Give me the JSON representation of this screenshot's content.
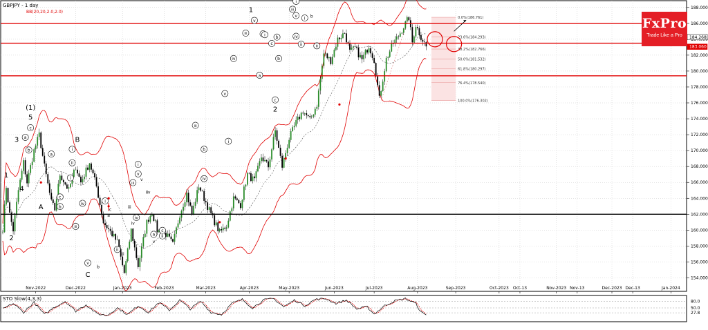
{
  "chart_data": {
    "type": "candlestick",
    "title": "GBPJPY - 1 day",
    "indicator_label": "BB(20,20,2.0,2.0)",
    "sto_label": "STO Slow(4,3,3)",
    "brand": {
      "name": "FxPro",
      "tagline": "Trade Like a Pro",
      "color": "#e41e26"
    },
    "ylim": [
      153.0,
      188.5
    ],
    "y_ticks": [
      "188.000",
      "186.000",
      "184.000",
      "182.000",
      "180.000",
      "178.000",
      "176.000",
      "174.000",
      "172.000",
      "170.000",
      "168.000",
      "166.000",
      "164.000",
      "162.000",
      "160.000",
      "158.000",
      "156.000",
      "154.000"
    ],
    "y_tick_values": [
      188,
      186,
      184,
      182,
      180,
      178,
      176,
      174,
      172,
      170,
      168,
      166,
      164,
      162,
      160,
      158,
      156,
      154
    ],
    "x_ticks": [
      "Nov-2022",
      "Dec-2022",
      "Jan-2023",
      "Feb-2023",
      "Mar-2023",
      "Apr-2023",
      "May-2023",
      "Jun-2023",
      "Jul-2023",
      "Aug-2023",
      "Sep-2023",
      "Oct-2023",
      "Oct-13",
      "Nov-2023",
      "Nov-13",
      "Dec-2023",
      "Dec-13",
      "Jan-2024"
    ],
    "x_tick_index": [
      19,
      42,
      69,
      93,
      117,
      142,
      165,
      191,
      214,
      239,
      261,
      286,
      298,
      319,
      331,
      351,
      363,
      385
    ],
    "current_price_labels": [
      {
        "text": "184.268",
        "value": 184.268
      },
      {
        "text": "183.060",
        "value": 183.06
      }
    ],
    "horizontal_levels": [
      {
        "value": 186.0,
        "color": "#e00000"
      },
      {
        "value": 183.5,
        "color": "#e00000"
      },
      {
        "value": 179.4,
        "color": "#e00000"
      },
      {
        "value": 162.0,
        "color": "#000000"
      }
    ],
    "fibonacci": [
      {
        "label": "0.0%(186.761)",
        "value": 186.761
      },
      {
        "label": "23.6%(184.293)",
        "value": 184.293
      },
      {
        "label": "38.2%(182.766)",
        "value": 182.766
      },
      {
        "label": "50.0%(181.532)",
        "value": 181.532
      },
      {
        "label": "61.8%(180.297)",
        "value": 180.297
      },
      {
        "label": "76.4%(178.540)",
        "value": 178.54
      },
      {
        "label": "100.0%(176.302)",
        "value": 176.302
      }
    ],
    "waypoints": [
      [
        0,
        160.2
      ],
      [
        2,
        165.5
      ],
      [
        4,
        162.0
      ],
      [
        6,
        160.0
      ],
      [
        9,
        165.0
      ],
      [
        12,
        168.5
      ],
      [
        14,
        166.0
      ],
      [
        18,
        170.0
      ],
      [
        21,
        172.0
      ],
      [
        24,
        168.0
      ],
      [
        28,
        163.5
      ],
      [
        30,
        162.6
      ],
      [
        33,
        167.0
      ],
      [
        38,
        165.0
      ],
      [
        42,
        168.0
      ],
      [
        45,
        166.0
      ],
      [
        50,
        168.5
      ],
      [
        54,
        165.5
      ],
      [
        58,
        161.0
      ],
      [
        62,
        159.8
      ],
      [
        66,
        158.5
      ],
      [
        70,
        154.6
      ],
      [
        74,
        160.0
      ],
      [
        78,
        155.5
      ],
      [
        83,
        161.0
      ],
      [
        86,
        162.3
      ],
      [
        89,
        160.0
      ],
      [
        94,
        159.5
      ],
      [
        98,
        158.2
      ],
      [
        102,
        162.0
      ],
      [
        106,
        164.6
      ],
      [
        109,
        162.0
      ],
      [
        113,
        165.6
      ],
      [
        117,
        163.5
      ],
      [
        121,
        161.5
      ],
      [
        125,
        159.7
      ],
      [
        129,
        160.6
      ],
      [
        133,
        164.0
      ],
      [
        137,
        163.2
      ],
      [
        141,
        167.0
      ],
      [
        145,
        166.2
      ],
      [
        149,
        169.2
      ],
      [
        153,
        168.0
      ],
      [
        157,
        172.5
      ],
      [
        161,
        168.0
      ],
      [
        165,
        171.5
      ],
      [
        169,
        173.5
      ],
      [
        173,
        175.0
      ],
      [
        177,
        173.8
      ],
      [
        181,
        175.8
      ],
      [
        185,
        182.2
      ],
      [
        189,
        181.3
      ],
      [
        193,
        184.0
      ],
      [
        197,
        184.8
      ],
      [
        200,
        182.4
      ],
      [
        203,
        182.9
      ],
      [
        207,
        181.4
      ],
      [
        211,
        183.2
      ],
      [
        214,
        181.4
      ],
      [
        217,
        176.5
      ],
      [
        221,
        181.5
      ],
      [
        225,
        183.5
      ],
      [
        228,
        184.4
      ],
      [
        231,
        185.6
      ],
      [
        234,
        186.7
      ],
      [
        236,
        183.6
      ],
      [
        238,
        185.8
      ],
      [
        241,
        184.3
      ],
      [
        244,
        183.1
      ]
    ],
    "stochastic": {
      "ylim": [
        0,
        100
      ],
      "levels": [
        80.0,
        50.0,
        27.8
      ],
      "level_labels": [
        "80.0",
        "50.0",
        "27.8"
      ],
      "waypoints": [
        [
          0,
          45
        ],
        [
          6,
          70
        ],
        [
          12,
          30
        ],
        [
          18,
          75
        ],
        [
          24,
          20
        ],
        [
          30,
          55
        ],
        [
          36,
          80
        ],
        [
          42,
          35
        ],
        [
          48,
          65
        ],
        [
          54,
          25
        ],
        [
          60,
          15
        ],
        [
          66,
          50
        ],
        [
          72,
          20
        ],
        [
          78,
          60
        ],
        [
          84,
          30
        ],
        [
          90,
          75
        ],
        [
          96,
          40
        ],
        [
          102,
          85
        ],
        [
          108,
          45
        ],
        [
          114,
          80
        ],
        [
          120,
          30
        ],
        [
          126,
          20
        ],
        [
          132,
          70
        ],
        [
          138,
          88
        ],
        [
          144,
          50
        ],
        [
          150,
          85
        ],
        [
          156,
          92
        ],
        [
          162,
          55
        ],
        [
          168,
          85
        ],
        [
          174,
          60
        ],
        [
          180,
          88
        ],
        [
          186,
          92
        ],
        [
          192,
          70
        ],
        [
          198,
          85
        ],
        [
          204,
          45
        ],
        [
          210,
          55
        ],
        [
          214,
          22
        ],
        [
          220,
          60
        ],
        [
          226,
          82
        ],
        [
          232,
          92
        ],
        [
          238,
          70
        ],
        [
          241,
          30
        ],
        [
          244,
          18
        ]
      ]
    },
    "wave_labels": [
      {
        "t": "(1)",
        "i": 16,
        "v": 175.2,
        "c": 0
      },
      {
        "t": "5",
        "i": 16,
        "v": 174.0,
        "c": 0
      },
      {
        "t": "3",
        "i": 8,
        "v": 171.2,
        "c": 0
      },
      {
        "t": "4",
        "i": 11,
        "v": 165.0,
        "c": 0
      },
      {
        "t": "1",
        "i": 2,
        "v": 166.7,
        "c": 0
      },
      {
        "t": "2",
        "i": 5,
        "v": 158.8,
        "c": 0
      },
      {
        "t": "A",
        "i": 22,
        "v": 162.7,
        "c": 0
      },
      {
        "t": "B",
        "i": 43,
        "v": 171.2,
        "c": 0
      },
      {
        "t": "C",
        "i": 49,
        "v": 154.2,
        "c": 0
      },
      {
        "t": "1",
        "i": 143,
        "v": 187.5,
        "c": 0
      },
      {
        "t": "2",
        "i": 157,
        "v": 175.0,
        "c": 0
      },
      {
        "t": "a",
        "i": 13,
        "v": 171.5,
        "c": 1
      },
      {
        "t": "b",
        "i": 15,
        "v": 169.9,
        "c": 1
      },
      {
        "t": "c",
        "i": 16,
        "v": 172.7,
        "c": 1
      },
      {
        "t": "a",
        "i": 28,
        "v": 169.4,
        "c": 1
      },
      {
        "t": "b",
        "i": 33,
        "v": 162.8,
        "c": 1
      },
      {
        "t": "c",
        "i": 33,
        "v": 164.0,
        "c": 1
      },
      {
        "t": "i",
        "i": 40,
        "v": 170.0,
        "c": 1
      },
      {
        "t": "ii",
        "i": 40,
        "v": 168.3,
        "c": 1
      },
      {
        "t": "i",
        "i": 39,
        "v": 166.4,
        "c": 1
      },
      {
        "t": "iv",
        "i": 46,
        "v": 163.2,
        "c": 1
      },
      {
        "t": "iii",
        "i": 42,
        "v": 160.3,
        "c": 1
      },
      {
        "t": "v",
        "i": 49,
        "v": 155.7,
        "c": 1
      },
      {
        "t": "i",
        "i": 59,
        "v": 163.5,
        "c": 1
      },
      {
        "t": "ii",
        "i": 66,
        "v": 157.4,
        "c": 1
      },
      {
        "t": "iii",
        "i": 75,
        "v": 165.8,
        "c": 1
      },
      {
        "t": "iv",
        "i": 77,
        "v": 161.4,
        "c": 1
      },
      {
        "t": "i",
        "i": 78,
        "v": 168.1,
        "c": 1
      },
      {
        "t": "v",
        "i": 78,
        "v": 166.9,
        "c": 1
      },
      {
        "t": "ii",
        "i": 92,
        "v": 159.1,
        "c": 1
      },
      {
        "t": "a",
        "i": 87,
        "v": 159.3,
        "c": 1
      },
      {
        "t": "c",
        "i": 92,
        "v": 159.8,
        "c": 1
      },
      {
        "t": "iii",
        "i": 111,
        "v": 173.0,
        "c": 1
      },
      {
        "t": "b",
        "i": 116,
        "v": 170.0,
        "c": 1
      },
      {
        "t": "iv",
        "i": 116,
        "v": 166.3,
        "c": 1
      },
      {
        "t": "v",
        "i": 128,
        "v": 177.0,
        "c": 1
      },
      {
        "t": "i",
        "i": 130,
        "v": 171.0,
        "c": 1
      },
      {
        "t": "iv",
        "i": 133,
        "v": 181.4,
        "c": 1
      },
      {
        "t": "iii",
        "i": 140,
        "v": 184.6,
        "c": 1
      },
      {
        "t": "v",
        "i": 145,
        "v": 186.2,
        "c": 1
      },
      {
        "t": "a",
        "i": 150,
        "v": 184.5,
        "c": 1
      },
      {
        "t": "b",
        "i": 158,
        "v": 184.1,
        "c": 1
      },
      {
        "t": "c",
        "i": 155,
        "v": 183.3,
        "c": 1
      },
      {
        "t": "b",
        "i": 159,
        "v": 181.4,
        "c": 1
      },
      {
        "t": "a",
        "i": 148,
        "v": 179.3,
        "c": 1
      },
      {
        "t": "c",
        "i": 157,
        "v": 176.2,
        "c": 1
      },
      {
        "t": "i",
        "i": 151,
        "v": 184.4,
        "c": 1
      },
      {
        "t": "i",
        "i": 169,
        "v": 188.6,
        "c": 1
      },
      {
        "t": "iii",
        "i": 167,
        "v": 187.6,
        "c": 1
      },
      {
        "t": "v",
        "i": 169,
        "v": 186.8,
        "c": 1
      },
      {
        "t": "iv",
        "i": 169,
        "v": 184.2,
        "c": 1
      },
      {
        "t": "i",
        "i": 174,
        "v": 186.5,
        "c": 1
      },
      {
        "t": "ii",
        "i": 172,
        "v": 183.2,
        "c": 1
      },
      {
        "t": "ii",
        "i": 181,
        "v": 183.0,
        "c": 1
      }
    ],
    "plain_labels": [
      {
        "t": "a",
        "i": 61,
        "v": 161.7
      },
      {
        "t": "b",
        "i": 55,
        "v": 155.2
      },
      {
        "t": "c",
        "i": 62,
        "v": 162.4
      },
      {
        "t": "i",
        "i": 89,
        "v": 161.1
      },
      {
        "t": "ii",
        "i": 83,
        "v": 164.6
      },
      {
        "t": "iv",
        "i": 84,
        "v": 164.6
      },
      {
        "t": "v",
        "i": 87,
        "v": 158.4
      },
      {
        "t": "iii",
        "i": 69,
        "v": 156.8
      },
      {
        "t": "iii",
        "i": 73,
        "v": 162.7
      },
      {
        "t": "v",
        "i": 80,
        "v": 166.2
      },
      {
        "t": "iv",
        "i": 75,
        "v": 160.7
      },
      {
        "t": "b",
        "i": 178,
        "v": 186.7
      }
    ]
  }
}
